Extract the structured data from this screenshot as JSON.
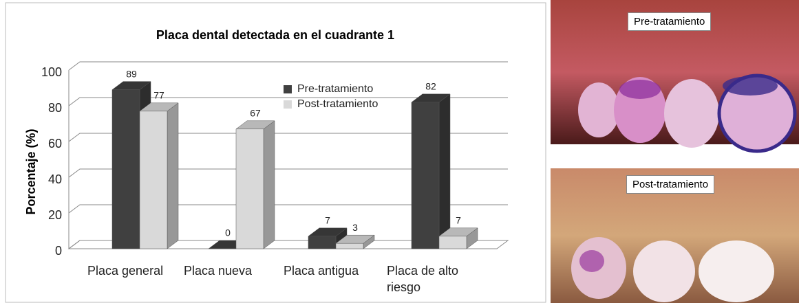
{
  "chart_data": {
    "type": "bar3d",
    "title": "Placa dental detectada en el cuadrante 1",
    "y_label": "Porcentaje (%)",
    "categories": [
      "Placa general",
      "Placa nueva",
      "Placa antigua",
      "Placa de alto riesgo"
    ],
    "series": [
      {
        "name": "Pre-tratamiento",
        "color": "#404040",
        "values": [
          89,
          0,
          7,
          82
        ]
      },
      {
        "name": "Post-tratamiento",
        "color": "#d9d9d9",
        "values": [
          77,
          67,
          3,
          7
        ]
      }
    ],
    "ylim": [
      0,
      100
    ],
    "yticks": [
      0,
      20,
      40,
      60,
      80,
      100
    ],
    "grid": true
  },
  "photos": [
    {
      "label": "Pre-tratamiento"
    },
    {
      "label": "Post-tratamiento"
    }
  ]
}
